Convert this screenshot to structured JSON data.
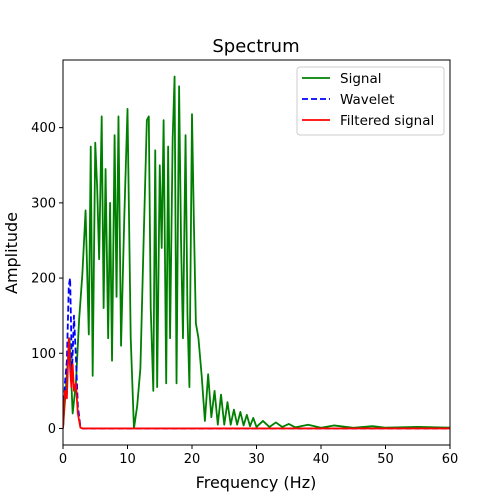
{
  "chart_data": {
    "type": "line",
    "title": "Spectrum",
    "xlabel": "Frequency (Hz)",
    "ylabel": "Amplitude",
    "xlim": [
      0,
      60
    ],
    "ylim": [
      -22,
      490
    ],
    "xticks": [
      0,
      10,
      20,
      30,
      40,
      50,
      60
    ],
    "yticks": [
      0,
      100,
      200,
      300,
      400
    ],
    "grid": false,
    "legend_position": "top-right",
    "series": [
      {
        "name": "Signal",
        "color": "#008000",
        "dash": "solid",
        "x": [
          0,
          0.5,
          1.0,
          1.5,
          2.0,
          2.5,
          3.0,
          3.5,
          4.0,
          4.3,
          4.6,
          5.0,
          5.3,
          5.6,
          6.0,
          6.3,
          6.6,
          7.0,
          7.3,
          7.6,
          8.0,
          8.3,
          8.6,
          9.0,
          9.5,
          10.0,
          10.5,
          11.0,
          11.5,
          12.0,
          12.5,
          13.0,
          13.3,
          13.6,
          14.0,
          14.3,
          14.6,
          15.0,
          15.3,
          15.6,
          16.0,
          16.3,
          16.6,
          17.0,
          17.3,
          17.6,
          18.0,
          18.3,
          18.6,
          19.0,
          19.3,
          19.6,
          20.0,
          20.3,
          20.6,
          21.0,
          21.5,
          22.0,
          22.5,
          23.0,
          23.5,
          24.0,
          24.5,
          25.0,
          25.5,
          26.0,
          26.5,
          27.0,
          27.5,
          28.0,
          28.5,
          29.0,
          29.5,
          30.0,
          31.0,
          32.0,
          33.0,
          34.0,
          35.0,
          36.0,
          38.0,
          40.0,
          42.0,
          45.0,
          48.0,
          50.0,
          55.0,
          60.0
        ],
        "y": [
          0,
          60,
          120,
          20,
          60,
          145,
          205,
          290,
          125,
          375,
          70,
          380,
          320,
          225,
          415,
          160,
          345,
          120,
          300,
          90,
          390,
          175,
          415,
          110,
          280,
          425,
          120,
          0,
          30,
          80,
          250,
          410,
          415,
          160,
          50,
          370,
          55,
          350,
          240,
          410,
          60,
          375,
          120,
          385,
          468,
          60,
          455,
          250,
          120,
          390,
          150,
          55,
          418,
          270,
          140,
          120,
          70,
          10,
          72,
          15,
          50,
          5,
          45,
          5,
          35,
          5,
          25,
          5,
          22,
          4,
          18,
          3,
          14,
          2,
          10,
          2,
          8,
          2,
          6,
          1.5,
          5,
          1,
          4,
          1,
          3,
          1,
          2,
          1
        ]
      },
      {
        "name": "Wavelet",
        "color": "#0000ff",
        "dash": "dashed",
        "x": [
          0,
          0.3,
          0.6,
          0.9,
          1.1,
          1.4,
          1.7,
          2.0,
          2.3,
          2.7,
          3.0,
          5,
          10,
          20,
          30,
          40,
          50,
          60
        ],
        "y": [
          0,
          60,
          90,
          190,
          200,
          75,
          150,
          95,
          30,
          2,
          0,
          0,
          0,
          0,
          0,
          0,
          0,
          0
        ]
      },
      {
        "name": "Filtered signal",
        "color": "#ff0000",
        "dash": "solid",
        "x": [
          0,
          0.3,
          0.6,
          0.9,
          1.1,
          1.3,
          1.5,
          1.7,
          2.0,
          2.3,
          2.7,
          3.0,
          5,
          10,
          20,
          30,
          40,
          50,
          60
        ],
        "y": [
          0,
          50,
          40,
          120,
          80,
          55,
          85,
          50,
          60,
          20,
          1,
          0,
          0,
          0,
          0,
          0,
          0,
          0,
          0
        ]
      }
    ]
  }
}
